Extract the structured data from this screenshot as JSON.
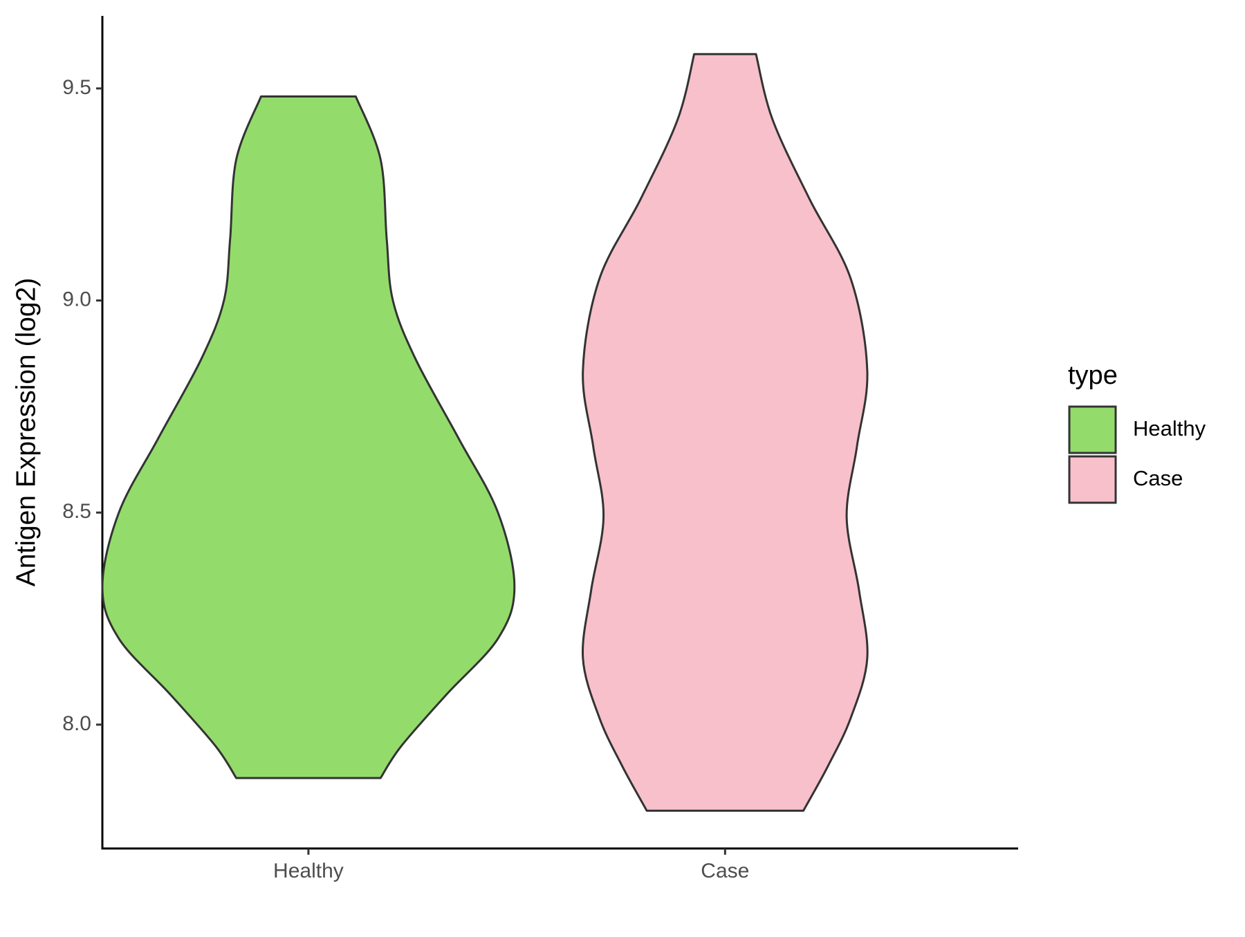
{
  "chart_data": {
    "type": "violin",
    "y_label": "Antigen Expression (log2)",
    "categories": [
      "Healthy",
      "Case"
    ],
    "ylim": [
      7.708,
      9.671
    ],
    "yticks": [
      {
        "value": 8,
        "label": "8.0"
      },
      8.5,
      {
        "value": 9,
        "label": "9.0"
      },
      9.5
    ],
    "legend_title": "type",
    "legend_position": "right",
    "series": [
      {
        "name": "Healthy",
        "color": "#93dc6b",
        "profile": {
          "y": [
            9.481,
            9.333,
            9.145,
            9.0,
            8.862,
            8.674,
            8.5,
            8.325,
            8.203,
            8.071,
            7.949,
            7.874
          ],
          "width": [
            0.23,
            0.35,
            0.38,
            0.41,
            0.52,
            0.73,
            0.92,
            1.0,
            0.92,
            0.67,
            0.45,
            0.35
          ]
        }
      },
      {
        "name": "Case",
        "color": "#f7c0cb",
        "profile": {
          "y": [
            9.581,
            9.427,
            9.239,
            9.051,
            8.835,
            8.656,
            8.49,
            8.317,
            8.157,
            8.016,
            7.903,
            7.797
          ],
          "width": [
            0.15,
            0.23,
            0.41,
            0.61,
            0.69,
            0.64,
            0.59,
            0.65,
            0.69,
            0.61,
            0.5,
            0.38
          ]
        }
      }
    ]
  }
}
